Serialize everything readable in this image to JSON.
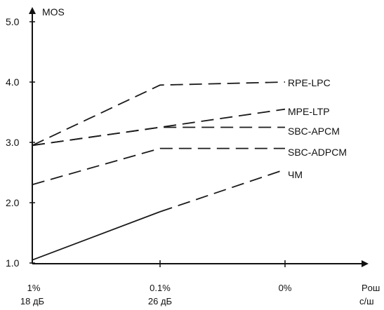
{
  "chart_data": {
    "type": "line",
    "title": "",
    "ylabel": "MOS",
    "xlabel": "",
    "x_axis_unit_label": [
      "Pош",
      "с/ш"
    ],
    "ylim": [
      1.0,
      5.0
    ],
    "y_ticks": [
      "1.0",
      "2.0",
      "3.0",
      "4.0",
      "5.0"
    ],
    "categories": [
      {
        "top": "1%",
        "bottom": "18 дБ"
      },
      {
        "top": "0.1%",
        "bottom": "26 дБ"
      },
      {
        "top": "0%",
        "bottom": ""
      }
    ],
    "series": [
      {
        "name": "RPE-LPC",
        "values": [
          2.95,
          3.95,
          4.0
        ],
        "style": "dashed"
      },
      {
        "name": "MPE-LTP",
        "values": [
          2.95,
          3.25,
          3.55
        ],
        "style": "dashed"
      },
      {
        "name": "SBC-APCM",
        "values": [
          2.95,
          3.25,
          3.25
        ],
        "style": "dashed"
      },
      {
        "name": "SBC-ADPCM",
        "values": [
          2.3,
          2.9,
          2.9
        ],
        "style": "dashed"
      },
      {
        "name": "ЧМ",
        "values": [
          1.05,
          1.85,
          2.55
        ],
        "style": "mixed"
      }
    ],
    "grid": false,
    "legend": "right-labels",
    "line_color": "#1a1a1a"
  }
}
